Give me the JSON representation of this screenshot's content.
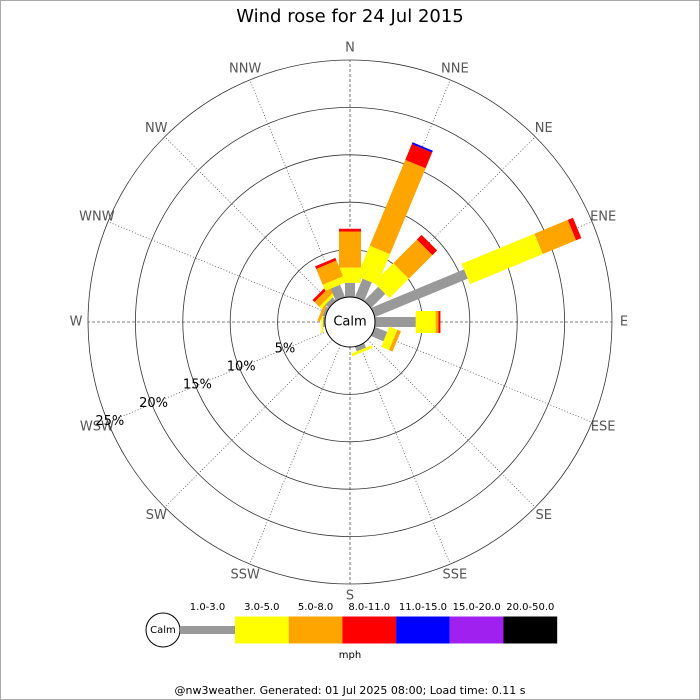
{
  "chart_data": {
    "type": "windrose",
    "title": "Wind rose for 24 Jul 2015",
    "directions": [
      "N",
      "NNE",
      "NE",
      "ENE",
      "E",
      "ESE",
      "SE",
      "SSE",
      "S",
      "SSW",
      "SW",
      "WSW",
      "W",
      "WNW",
      "NW",
      "NNW"
    ],
    "rlim": [
      0,
      25
    ],
    "rticks": [
      {
        "value": 5,
        "label": "5%"
      },
      {
        "value": 10,
        "label": "10%"
      },
      {
        "value": 15,
        "label": "15%"
      },
      {
        "value": 20,
        "label": "20%"
      },
      {
        "value": 25,
        "label": "25%"
      }
    ],
    "calm_label": "Calm",
    "unit": "mph",
    "series": [
      {
        "name": "1.0-3.0",
        "color": "#999999",
        "values": [
          1.5,
          2.1,
          2.1,
          10.6,
          4.3,
          1.4,
          0,
          0.5,
          0,
          0,
          0,
          0,
          0.2,
          0.3,
          0.5,
          1.4
        ]
      },
      {
        "name": "3.0-5.0",
        "color": "#ffff00",
        "values": [
          1.6,
          3.5,
          2.9,
          8.3,
          2.1,
          0.9,
          0,
          0.3,
          0,
          0,
          0,
          0,
          0.2,
          0,
          0.3,
          0.7
        ]
      },
      {
        "name": "5.0-8.0",
        "color": "#ffa500",
        "values": [
          3.8,
          9.8,
          3.5,
          3.8,
          0.3,
          0.4,
          0,
          0,
          0,
          0,
          0,
          0,
          0,
          0.3,
          0.7,
          1.8
        ]
      },
      {
        "name": "8.0-11.0",
        "color": "#ff0000",
        "values": [
          0.3,
          1.8,
          0.7,
          0.6,
          0.2,
          0,
          0,
          0,
          0,
          0,
          0,
          0,
          0,
          0,
          0.3,
          0.3
        ]
      },
      {
        "name": "11.0-15.0",
        "color": "#0000ff",
        "values": [
          0,
          0.2,
          0,
          0,
          0,
          0,
          0,
          0,
          0,
          0,
          0,
          0,
          0,
          0,
          0,
          0
        ]
      },
      {
        "name": "15.0-20.0",
        "color": "#a020f0",
        "values": [
          0,
          0,
          0,
          0,
          0,
          0,
          0,
          0,
          0,
          0,
          0,
          0,
          0,
          0,
          0,
          0
        ]
      },
      {
        "name": "20.0-50.0",
        "color": "#000000",
        "values": [
          0,
          0,
          0,
          0,
          0,
          0,
          0,
          0,
          0,
          0,
          0,
          0,
          0,
          0,
          0,
          0
        ]
      }
    ]
  },
  "footer": "@nw3weather. Generated: 01 Jul 2025 08:00; Load time: 0.11 s"
}
